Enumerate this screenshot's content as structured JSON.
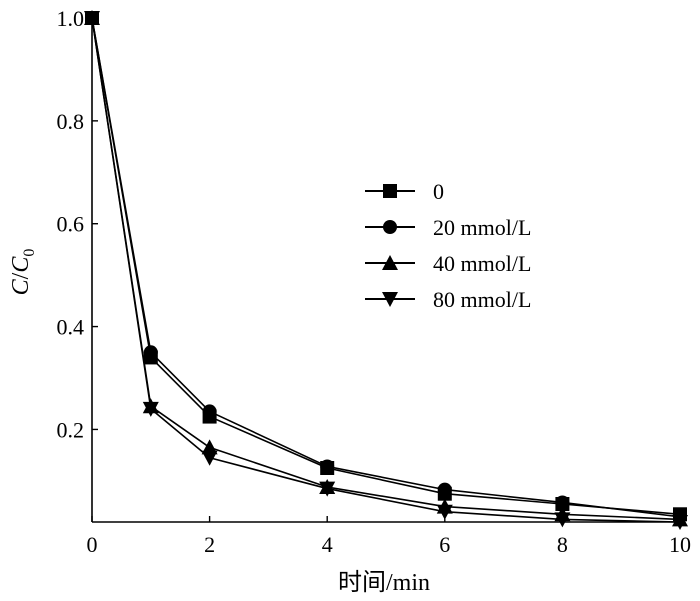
{
  "chart_data": {
    "type": "line",
    "xlabel": "时间/min",
    "ylabel": {
      "main": "C",
      "sep": "/",
      "denom": "C",
      "sub": "0"
    },
    "xlim": [
      0,
      10
    ],
    "ylim": [
      0.02,
      1.0
    ],
    "xticks": [
      0,
      2,
      4,
      6,
      8,
      10
    ],
    "xtick_labels": [
      "0",
      "2",
      "4",
      "6",
      "8",
      "10"
    ],
    "yticks": [
      0.2,
      0.4,
      0.6,
      0.8,
      1.0
    ],
    "ytick_labels": [
      "0.2",
      "0.4",
      "0.6",
      "0.8",
      "1.0"
    ],
    "grid": false,
    "legend_position": "right",
    "x": [
      0,
      1,
      2,
      4,
      6,
      8,
      10
    ],
    "series": [
      {
        "name": "0",
        "marker": "square",
        "values": [
          1.0,
          0.34,
          0.225,
          0.125,
          0.075,
          0.055,
          0.035
        ]
      },
      {
        "name": "20 mmol/L",
        "marker": "circle",
        "values": [
          1.0,
          0.35,
          0.235,
          0.128,
          0.083,
          0.058,
          0.03
        ]
      },
      {
        "name": "40 mmol/L",
        "marker": "triangle-up",
        "values": [
          1.0,
          0.245,
          0.165,
          0.088,
          0.05,
          0.035,
          0.025
        ]
      },
      {
        "name": "80 mmol/L",
        "marker": "triangle-down",
        "values": [
          1.0,
          0.24,
          0.145,
          0.085,
          0.04,
          0.025,
          0.02
        ]
      }
    ]
  }
}
